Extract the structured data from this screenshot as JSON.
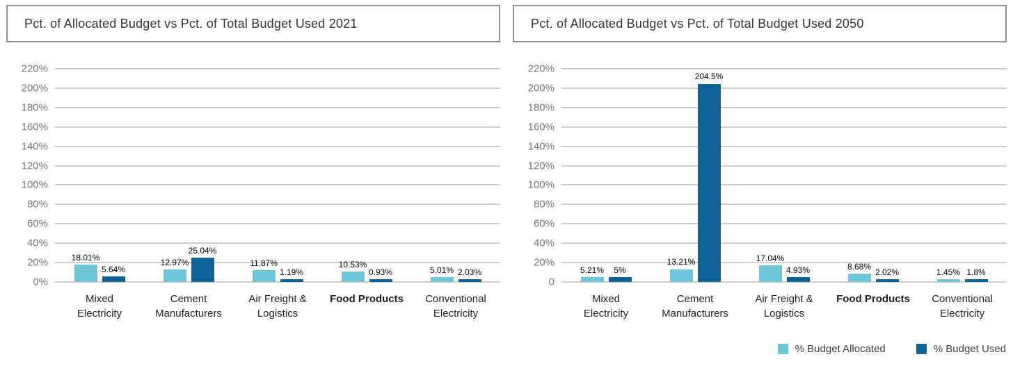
{
  "page": {
    "background": "#ffffff"
  },
  "colors": {
    "allocated": "#6ec6d8",
    "used": "#0e6398",
    "gridline": "#cdcdcd",
    "y_axis_label": "#757575",
    "category_label": "#212121",
    "value_label": "#000000",
    "title_text": "#333333",
    "title_border": "#8f8f8f",
    "legend_text": "#3c4043"
  },
  "legend": {
    "position": "bottom-right",
    "items": [
      {
        "label": "% Budget Allocated",
        "color": "#6ec6d8"
      },
      {
        "label": "% Budget Used",
        "color": "#0e6398"
      }
    ]
  },
  "chart_data": [
    {
      "type": "bar",
      "title": "Pct. of Allocated Budget vs Pct. of Total Budget Used 2021",
      "xlabel": "",
      "ylabel": "",
      "grid": true,
      "ylim": [
        0,
        220
      ],
      "ytick_values": [
        220,
        200,
        180,
        160,
        140,
        120,
        100,
        80,
        60,
        40,
        20,
        0
      ],
      "ytick_labels": [
        "220%",
        "200%",
        "180%",
        "160%",
        "140%",
        "120%",
        "100%",
        "80%",
        "60%",
        "40%",
        "20%",
        "0%"
      ],
      "categories": [
        "Mixed Electricity",
        "Cement Manufacturers",
        "Air Freight & Logistics",
        "Food Products",
        "Conventional Electricity"
      ],
      "category_lines": [
        [
          "Mixed",
          "Electricity"
        ],
        [
          "Cement",
          "Manufacturers"
        ],
        [
          "Air Freight &",
          "Logistics"
        ],
        [
          "Food Products"
        ],
        [
          "Conventional",
          "Electricity"
        ]
      ],
      "bold_categories": [
        "Food Products"
      ],
      "series": [
        {
          "name": "% Budget Allocated",
          "color": "#6ec6d8",
          "values": [
            18.01,
            12.97,
            11.87,
            10.53,
            5.01
          ],
          "value_labels": [
            "18.01%",
            "12.97%",
            "11.87%",
            "10.53%",
            "5.01%"
          ]
        },
        {
          "name": "% Budget Used",
          "color": "#0e6398",
          "values": [
            5.64,
            25.04,
            1.19,
            0.93,
            2.03
          ],
          "value_labels": [
            "5.64%",
            "25.04%",
            "1.19%",
            "0.93%",
            "2.03%"
          ]
        }
      ]
    },
    {
      "type": "bar",
      "title": "Pct. of Allocated Budget vs Pct. of Total Budget Used 2050",
      "xlabel": "",
      "ylabel": "",
      "grid": true,
      "ylim": [
        0,
        220
      ],
      "ytick_values": [
        220,
        200,
        180,
        160,
        140,
        120,
        100,
        80,
        60,
        40,
        20,
        0
      ],
      "ytick_labels": [
        "220%",
        "200%",
        "180%",
        "160%",
        "140%",
        "120%",
        "100%",
        "80%",
        "60%",
        "40%",
        "20%",
        "0"
      ],
      "categories": [
        "Mixed Electricity",
        "Cement Manufacturers",
        "Air Freight & Logistics",
        "Food Products",
        "Conventional Electricity"
      ],
      "category_lines": [
        [
          "Mixed",
          "Electricity"
        ],
        [
          "Cement",
          "Manufacturers"
        ],
        [
          "Air Freight &",
          "Logistics"
        ],
        [
          "Food Products"
        ],
        [
          "Conventional",
          "Electricity"
        ]
      ],
      "bold_categories": [
        "Food Products"
      ],
      "series": [
        {
          "name": "% Budget Allocated",
          "color": "#6ec6d8",
          "values": [
            5.21,
            13.21,
            17.04,
            8.68,
            1.45
          ],
          "value_labels": [
            "5.21%",
            "13.21%",
            "17.04%",
            "8.68%",
            "1.45%"
          ]
        },
        {
          "name": "% Budget Used",
          "color": "#0e6398",
          "values": [
            5,
            204.5,
            4.93,
            2.02,
            1.8
          ],
          "value_labels": [
            "5%",
            "204.5%",
            "4.93%",
            "2.02%",
            "1.8%"
          ]
        }
      ]
    }
  ]
}
